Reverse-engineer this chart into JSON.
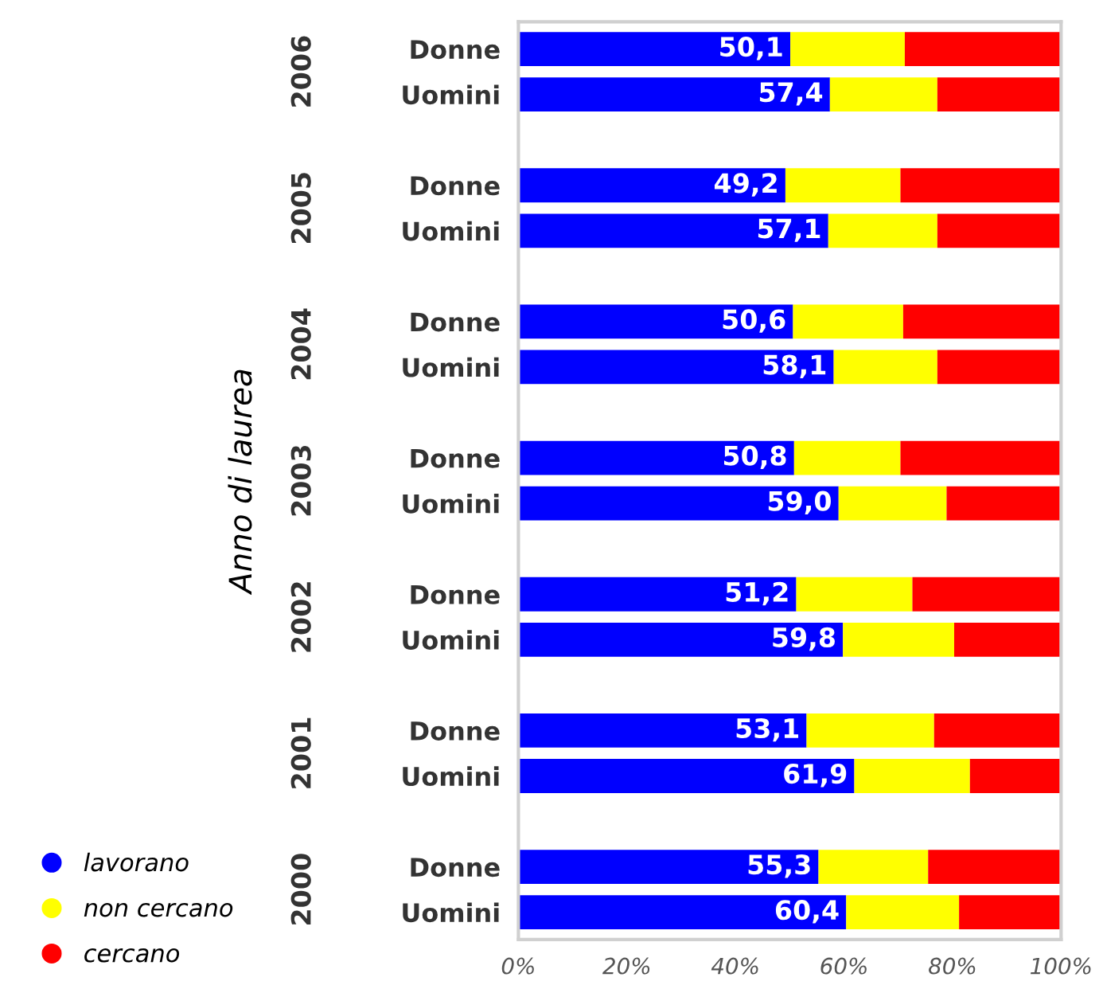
{
  "chart_data": {
    "type": "bar",
    "orientation": "horizontal",
    "stacked": true,
    "ylabel": "Anno di laurea",
    "categories": [
      "Donne",
      "Uomini",
      "Donne",
      "Uomini",
      "Donne",
      "Uomini",
      "Donne",
      "Uomini",
      "Donne",
      "Uomini",
      "Donne",
      "Uomini",
      "Donne",
      "Uomini"
    ],
    "annotations": [
      "2006",
      "2005",
      "2004",
      "2003",
      "2002",
      "2001",
      "2000"
    ],
    "series": [
      {
        "name": "lavorano",
        "color": "#0000ff",
        "values": [
          50.1,
          57.4,
          49.2,
          57.1,
          50.6,
          58.1,
          50.8,
          59.0,
          51.2,
          59.8,
          53.1,
          61.9,
          55.3,
          60.4
        ],
        "value_labels": [
          "50,1",
          "57,4",
          "49,2",
          "57,1",
          "50,6",
          "58,1",
          "50,8",
          "59,0",
          "51,2",
          "59,8",
          "53,1",
          "61,9",
          "55,3",
          "60,4"
        ]
      },
      {
        "name": "non cercano",
        "color": "#ffff00",
        "values": [
          21.1,
          19.8,
          21.2,
          20.1,
          20.3,
          19.1,
          19.6,
          19.9,
          21.4,
          20.5,
          23.5,
          21.3,
          20.2,
          20.8
        ]
      },
      {
        "name": "cercano",
        "color": "#ff0000",
        "values": [
          28.8,
          22.8,
          29.6,
          22.8,
          29.1,
          22.8,
          29.6,
          21.1,
          27.4,
          19.7,
          23.4,
          16.8,
          24.5,
          18.8
        ]
      }
    ],
    "xlim": [
      0,
      100
    ],
    "xticks": [
      {
        "value": 0,
        "label": "0%"
      },
      {
        "value": 20,
        "label": "20%"
      },
      {
        "value": 40,
        "label": "40%"
      },
      {
        "value": 60,
        "label": "60%"
      },
      {
        "value": 80,
        "label": "80%"
      },
      {
        "value": 100,
        "label": "100%"
      }
    ],
    "legend": "bottom left"
  }
}
